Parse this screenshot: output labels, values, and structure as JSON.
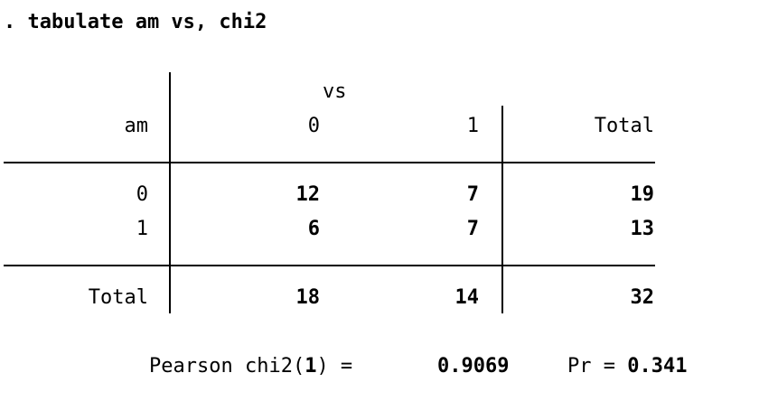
{
  "command": ". tabulate am vs, chi2",
  "table": {
    "col_var": "vs",
    "row_var": "am",
    "col_headers": [
      "0",
      "1",
      "Total"
    ],
    "rows": [
      {
        "label": "0",
        "cells": [
          "12",
          "7",
          "19"
        ]
      },
      {
        "label": "1",
        "cells": [
          "6",
          "7",
          "13"
        ]
      }
    ],
    "total_row": {
      "label": "Total",
      "cells": [
        "18",
        "14",
        "32"
      ]
    }
  },
  "stats": {
    "pearson_prefix": "Pearson chi2(",
    "df": "1",
    "pearson_suffix": ") = ",
    "chi2_value": "0.9069",
    "pr_label": "Pr = ",
    "pr_value": "0.341"
  }
}
